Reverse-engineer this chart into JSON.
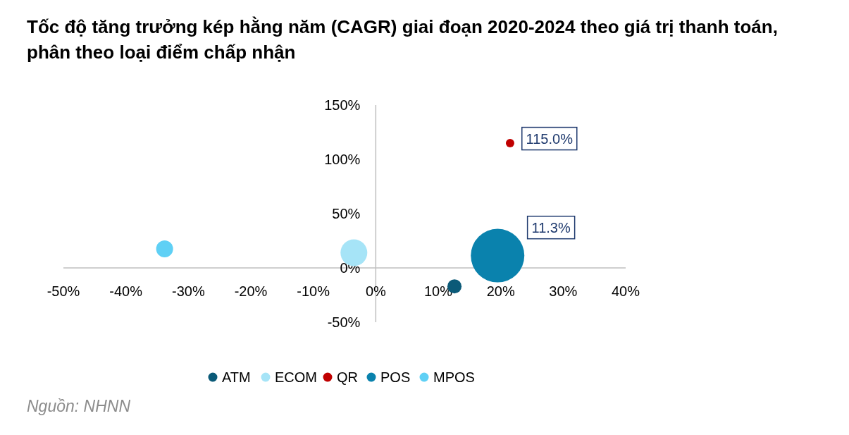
{
  "chart_data": {
    "type": "bubble",
    "title": "Tốc độ tăng trưởng kép hằng năm (CAGR) giai đoạn 2020-2024 theo giá trị thanh toán, phân theo loại điểm chấp nhận",
    "xlim": [
      -50,
      40
    ],
    "xticks": [
      {
        "value": -50,
        "label": "-50%"
      },
      {
        "value": -40,
        "label": "-40%"
      },
      {
        "value": -30,
        "label": "-30%"
      },
      {
        "value": -20,
        "label": "-20%"
      },
      {
        "value": -10,
        "label": "-10%"
      },
      {
        "value": 0,
        "label": "0%"
      },
      {
        "value": 10,
        "label": "10%"
      },
      {
        "value": 20,
        "label": "20%"
      },
      {
        "value": 30,
        "label": "30%"
      },
      {
        "value": 40,
        "label": "40%"
      }
    ],
    "ylim": [
      -50,
      150
    ],
    "yticks": [
      {
        "value": -50,
        "label": "-50%"
      },
      {
        "value": 0,
        "label": "0%"
      },
      {
        "value": 50,
        "label": "50%"
      },
      {
        "value": 100,
        "label": "100%"
      },
      {
        "value": 150,
        "label": "150%"
      }
    ],
    "series": [
      {
        "name": "ATM",
        "color": "#0b5a78",
        "x": [
          12.6
        ],
        "values": [
          -17
        ],
        "sizes": [
          0.07
        ]
      },
      {
        "name": "ECOM",
        "color": "#a6e4f7",
        "x": [
          -3.5
        ],
        "values": [
          14
        ],
        "sizes": [
          0.25
        ]
      },
      {
        "name": "QR",
        "color": "#c00000",
        "x": [
          21.5
        ],
        "values": [
          115
        ],
        "sizes": [
          0.025
        ],
        "value_labels": [
          "115.0%"
        ]
      },
      {
        "name": "POS",
        "color": "#0a82ad",
        "x": [
          19.5
        ],
        "values": [
          11.3
        ],
        "sizes": [
          1
        ],
        "value_labels": [
          "11.3%"
        ]
      },
      {
        "name": "MPOS",
        "color": "#5fd0f5",
        "x": [
          -33.8
        ],
        "values": [
          17.5
        ],
        "sizes": [
          0.1
        ]
      }
    ],
    "legend": "bottom",
    "grid": false,
    "annotations": [
      "Nguồn: NHNN"
    ]
  }
}
